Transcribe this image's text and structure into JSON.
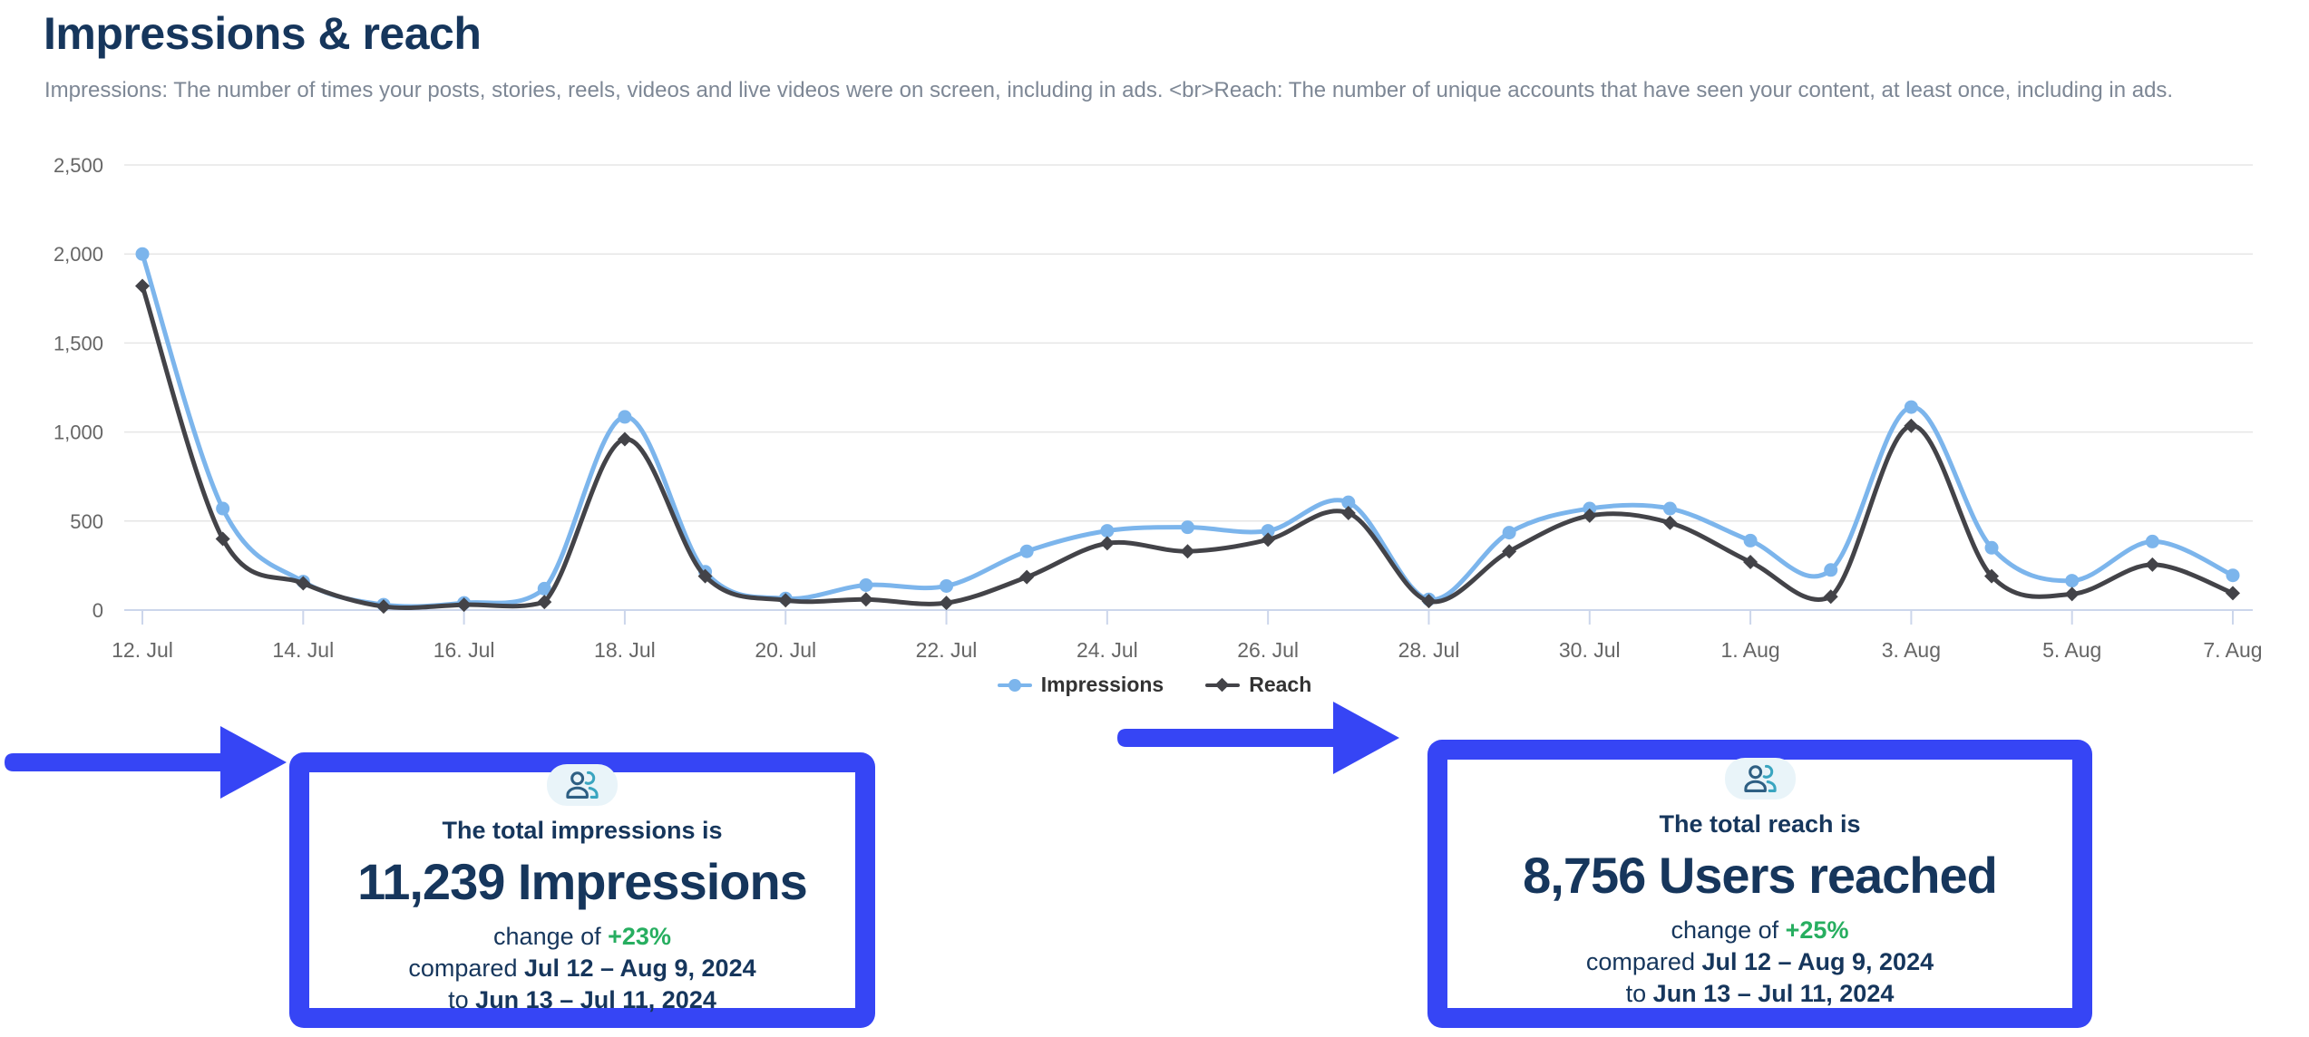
{
  "header": {
    "title": "Impressions & reach",
    "subtitle": "Impressions: The number of times your posts, stories, reels, videos and live videos were on screen, including in ads. <br>Reach: The number of unique accounts that have seen your content, at least once, including in ads."
  },
  "chart_data": {
    "type": "line",
    "title": "",
    "xlabel": "",
    "ylabel": "",
    "categories": [
      "12. Jul",
      "13. Jul",
      "14. Jul",
      "15. Jul",
      "16. Jul",
      "17. Jul",
      "18. Jul",
      "19. Jul",
      "20. Jul",
      "21. Jul",
      "22. Jul",
      "23. Jul",
      "24. Jul",
      "25. Jul",
      "26. Jul",
      "27. Jul",
      "28. Jul",
      "29. Jul",
      "30. Jul",
      "31. Jul",
      "1. Aug",
      "2. Aug",
      "3. Aug",
      "4. Aug",
      "5. Aug",
      "6. Aug",
      "7. Aug"
    ],
    "tick_every": 2,
    "series": [
      {
        "name": "Impressions",
        "color": "#7cb5ec",
        "marker": "circle",
        "values": [
          2000,
          570,
          160,
          30,
          40,
          120,
          1085,
          215,
          65,
          140,
          135,
          330,
          445,
          465,
          445,
          605,
          60,
          435,
          570,
          570,
          390,
          225,
          1140,
          350,
          165,
          385,
          195
        ]
      },
      {
        "name": "Reach",
        "color": "#434348",
        "marker": "diamond",
        "values": [
          1820,
          400,
          150,
          20,
          30,
          45,
          960,
          190,
          55,
          60,
          40,
          185,
          375,
          330,
          395,
          545,
          50,
          330,
          530,
          490,
          270,
          75,
          1035,
          190,
          90,
          255,
          95
        ]
      }
    ],
    "ylim": [
      0,
      2500
    ],
    "yticks": [
      {
        "value": 0,
        "label": "0"
      },
      {
        "value": 500,
        "label": "500"
      },
      {
        "value": 1000,
        "label": "1,000"
      },
      {
        "value": 1500,
        "label": "1,500"
      },
      {
        "value": 2000,
        "label": "2,000"
      },
      {
        "value": 2500,
        "label": "2,500"
      }
    ],
    "grid": true,
    "legend_position": "bottom-center",
    "style": {
      "grid_color": "#e6e6e6",
      "axis_color": "#ccd6eb",
      "tick_text_color": "#666666",
      "legend_text_color": "#333333"
    }
  },
  "cards": {
    "impressions": {
      "icon": "users-icon",
      "intro": "The total impressions is",
      "value": "11,239 Impressions",
      "change_prefix": "change of ",
      "change": "+23%",
      "compared_label": "compared ",
      "compared_range": "Jul 12 – Aug 9, 2024",
      "to_label": "to ",
      "to_range": "Jun 13 – Jul 11, 2024"
    },
    "reach": {
      "icon": "users-icon",
      "intro": "The total reach is",
      "value": "8,756 Users reached",
      "change_prefix": "change of ",
      "change": "+25%",
      "compared_label": "compared ",
      "compared_range": "Jul 12 – Aug 9, 2024",
      "to_label": "to ",
      "to_range": "Jun 13 – Jul 11, 2024"
    }
  },
  "theme": {
    "accent_blue": "#3645f5",
    "navy": "#16365c",
    "green": "#27ae60",
    "subtitle_gray": "#7d8795",
    "icon_teal": "#3aa5c0",
    "icon_navy": "#2e5f83",
    "icon_bg": "#e9f4f9"
  }
}
